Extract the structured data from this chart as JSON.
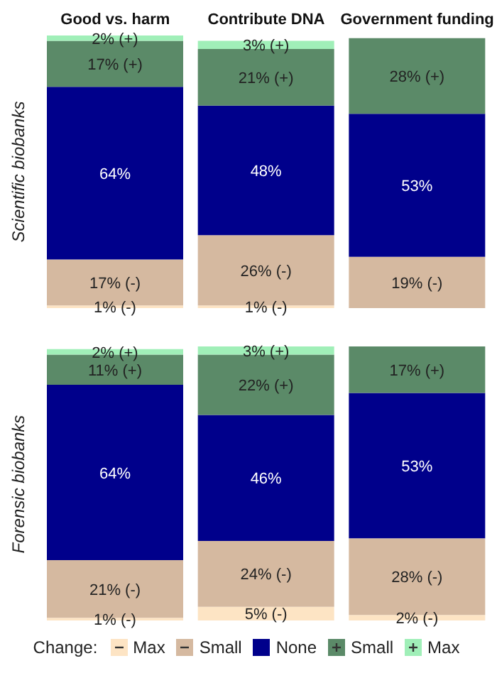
{
  "chart_data": [
    {
      "type": "bar",
      "stacked": true,
      "ylabel": "Scientific biobanks",
      "tick_labels": "x",
      "data_labels": true,
      "legend": "bottom",
      "legend_title": "Change:",
      "categories": [
        "Good vs. harm",
        "Contribute DNA",
        "Government funding"
      ],
      "series": [
        {
          "name": "Max",
          "color": "#fde4c4",
          "values": [
            1,
            1,
            null
          ],
          "value_labels": [
            "1% (-)",
            "1% (-)",
            null
          ]
        },
        {
          "name": "Small",
          "color": "#d5b9a0",
          "values": [
            17,
            26,
            19
          ],
          "value_labels": [
            "17% (-)",
            "26% (-)",
            "19% (-)"
          ]
        },
        {
          "name": "None",
          "color": "#00008b",
          "values": [
            64,
            48,
            53
          ],
          "value_labels": [
            "64%",
            "48%",
            "53%"
          ]
        },
        {
          "name": "Small",
          "color": "#5b8a68",
          "values": [
            17,
            21,
            28
          ],
          "value_labels": [
            "17% (+)",
            "21% (+)",
            "28% (+)"
          ]
        },
        {
          "name": "Max",
          "color": "#a0efb8",
          "values": [
            2,
            3,
            null
          ],
          "value_labels": [
            "2% (+)",
            "3% (+)",
            null
          ]
        }
      ]
    },
    {
      "type": "bar",
      "stacked": true,
      "ylabel": "Forensic biobanks",
      "tick_labels": false,
      "data_labels": true,
      "categories": [
        null,
        null,
        null
      ],
      "series": [
        {
          "color": "#fde4c4",
          "values": [
            1,
            5,
            2
          ],
          "value_labels": [
            "1% (-)",
            "5% (-)",
            "2% (-)"
          ]
        },
        {
          "color": "#d5b9a0",
          "values": [
            21,
            24,
            28
          ],
          "value_labels": [
            "21% (-)",
            "24% (-)",
            "28% (-)"
          ]
        },
        {
          "color": "#00008b",
          "values": [
            64,
            46,
            53
          ],
          "value_labels": [
            "64%",
            "46%",
            "53%"
          ]
        },
        {
          "color": "#5b8a68",
          "values": [
            11,
            22,
            17
          ],
          "value_labels": [
            "11% (+)",
            "22% (+)",
            "17% (+)"
          ]
        },
        {
          "color": "#a0efb8",
          "values": [
            2,
            3,
            null
          ],
          "value_labels": [
            "2% (+)",
            "3% (+)",
            null
          ]
        }
      ]
    }
  ]
}
